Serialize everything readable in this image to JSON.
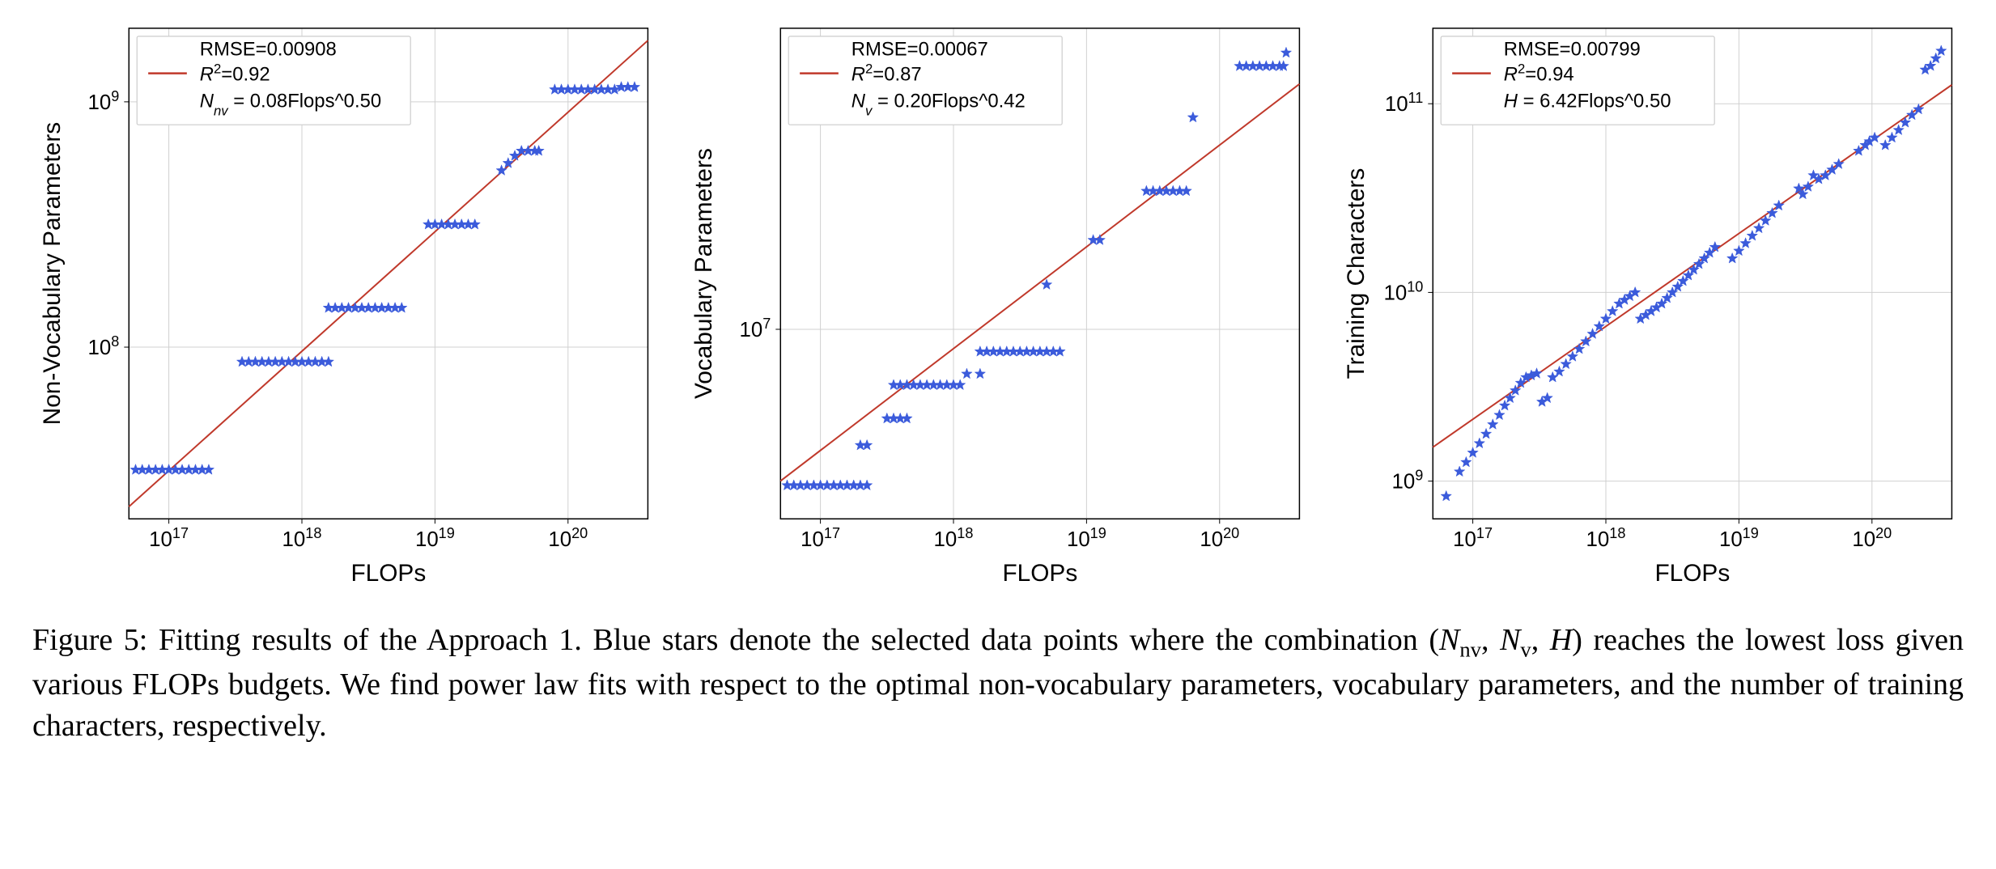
{
  "figure": {
    "number": "Figure 5:",
    "caption_p1": "Fitting results of the Approach 1. Blue stars denote the selected data points where the combination (",
    "caption_Nnv": "N",
    "caption_Nnv_sub": "nv",
    "caption_sep1": ", ",
    "caption_Nv": "N",
    "caption_Nv_sub": "v",
    "caption_sep2": ", ",
    "caption_H": "H",
    "caption_p2": ") reaches the lowest loss given various FLOPs budgets. We find power law fits with respect to the optimal non-vocabulary parameters, vocabulary parameters, and the number of training characters, respectively."
  },
  "common": {
    "xlabel": "FLOPs",
    "xlim": [
      16.7,
      20.6
    ],
    "xticks": [
      17,
      18,
      19,
      20
    ],
    "xtick_labels": [
      "10^17",
      "10^18",
      "10^19",
      "10^20"
    ],
    "grid_color": "#d0d0d0",
    "axis_color": "#000000",
    "fit_color": "#c0392b",
    "marker_color": "#3b5bdb",
    "marker_size": 7,
    "line_width": 2,
    "label_fontsize": 30,
    "tick_fontsize": 26,
    "legend_fontsize": 24,
    "background_color": "#ffffff",
    "legend_border": "#cccccc",
    "legend_bg": "#ffffff"
  },
  "panels": [
    {
      "id": "nv",
      "ylabel": "Non-Vocabulary Parameters",
      "ylim": [
        7.3,
        9.3
      ],
      "yticks": [
        8,
        9
      ],
      "ytick_labels": [
        "10^8",
        "10^9"
      ],
      "legend": {
        "rmse": "RMSE=0.00908",
        "r2_label": "R",
        "r2_sup": "2",
        "r2_val": "=0.92",
        "eq_var": "N",
        "eq_sub": "nv",
        "eq_rest": " = 0.08Flops^0.50"
      },
      "fit_line": {
        "x1": 16.7,
        "y1": 7.35,
        "x2": 20.6,
        "y2": 9.25
      },
      "points": [
        [
          16.75,
          7.5
        ],
        [
          16.8,
          7.5
        ],
        [
          16.85,
          7.5
        ],
        [
          16.9,
          7.5
        ],
        [
          16.95,
          7.5
        ],
        [
          17.0,
          7.5
        ],
        [
          17.05,
          7.5
        ],
        [
          17.1,
          7.5
        ],
        [
          17.15,
          7.5
        ],
        [
          17.2,
          7.5
        ],
        [
          17.25,
          7.5
        ],
        [
          17.3,
          7.5
        ],
        [
          17.55,
          7.94
        ],
        [
          17.6,
          7.94
        ],
        [
          17.65,
          7.94
        ],
        [
          17.7,
          7.94
        ],
        [
          17.75,
          7.94
        ],
        [
          17.8,
          7.94
        ],
        [
          17.85,
          7.94
        ],
        [
          17.9,
          7.94
        ],
        [
          17.95,
          7.94
        ],
        [
          18.0,
          7.94
        ],
        [
          18.05,
          7.94
        ],
        [
          18.1,
          7.94
        ],
        [
          18.15,
          7.94
        ],
        [
          18.2,
          7.94
        ],
        [
          18.2,
          8.16
        ],
        [
          18.25,
          8.16
        ],
        [
          18.3,
          8.16
        ],
        [
          18.35,
          8.16
        ],
        [
          18.4,
          8.16
        ],
        [
          18.45,
          8.16
        ],
        [
          18.5,
          8.16
        ],
        [
          18.55,
          8.16
        ],
        [
          18.6,
          8.16
        ],
        [
          18.65,
          8.16
        ],
        [
          18.7,
          8.16
        ],
        [
          18.75,
          8.16
        ],
        [
          18.95,
          8.5
        ],
        [
          19.0,
          8.5
        ],
        [
          19.05,
          8.5
        ],
        [
          19.1,
          8.5
        ],
        [
          19.15,
          8.5
        ],
        [
          19.2,
          8.5
        ],
        [
          19.25,
          8.5
        ],
        [
          19.3,
          8.5
        ],
        [
          19.5,
          8.72
        ],
        [
          19.55,
          8.75
        ],
        [
          19.6,
          8.78
        ],
        [
          19.65,
          8.8
        ],
        [
          19.7,
          8.8
        ],
        [
          19.75,
          8.8
        ],
        [
          19.78,
          8.8
        ],
        [
          19.9,
          9.05
        ],
        [
          19.95,
          9.05
        ],
        [
          20.0,
          9.05
        ],
        [
          20.05,
          9.05
        ],
        [
          20.1,
          9.05
        ],
        [
          20.15,
          9.05
        ],
        [
          20.2,
          9.05
        ],
        [
          20.25,
          9.05
        ],
        [
          20.3,
          9.05
        ],
        [
          20.35,
          9.05
        ],
        [
          20.4,
          9.06
        ],
        [
          20.45,
          9.06
        ],
        [
          20.5,
          9.06
        ]
      ]
    },
    {
      "id": "v",
      "ylabel": "Vocabulary Parameters",
      "ylim": [
        6.15,
        8.35
      ],
      "yticks": [
        7
      ],
      "ytick_labels": [
        "10^7"
      ],
      "legend": {
        "rmse": "RMSE=0.00067",
        "r2_label": "R",
        "r2_sup": "2",
        "r2_val": "=0.87",
        "eq_var": "N",
        "eq_sub": "v",
        "eq_rest": " = 0.20Flops^0.42"
      },
      "fit_line": {
        "x1": 16.7,
        "y1": 6.32,
        "x2": 20.6,
        "y2": 8.1
      },
      "points": [
        [
          16.75,
          6.3
        ],
        [
          16.8,
          6.3
        ],
        [
          16.85,
          6.3
        ],
        [
          16.9,
          6.3
        ],
        [
          16.95,
          6.3
        ],
        [
          17.0,
          6.3
        ],
        [
          17.05,
          6.3
        ],
        [
          17.1,
          6.3
        ],
        [
          17.15,
          6.3
        ],
        [
          17.2,
          6.3
        ],
        [
          17.25,
          6.3
        ],
        [
          17.3,
          6.3
        ],
        [
          17.35,
          6.3
        ],
        [
          17.3,
          6.48
        ],
        [
          17.35,
          6.48
        ],
        [
          17.5,
          6.6
        ],
        [
          17.55,
          6.6
        ],
        [
          17.6,
          6.6
        ],
        [
          17.65,
          6.6
        ],
        [
          17.55,
          6.75
        ],
        [
          17.6,
          6.75
        ],
        [
          17.65,
          6.75
        ],
        [
          17.7,
          6.75
        ],
        [
          17.75,
          6.75
        ],
        [
          17.8,
          6.75
        ],
        [
          17.85,
          6.75
        ],
        [
          17.9,
          6.75
        ],
        [
          17.95,
          6.75
        ],
        [
          18.0,
          6.75
        ],
        [
          18.05,
          6.75
        ],
        [
          18.1,
          6.8
        ],
        [
          18.2,
          6.8
        ],
        [
          18.2,
          6.9
        ],
        [
          18.25,
          6.9
        ],
        [
          18.3,
          6.9
        ],
        [
          18.35,
          6.9
        ],
        [
          18.4,
          6.9
        ],
        [
          18.45,
          6.9
        ],
        [
          18.5,
          6.9
        ],
        [
          18.55,
          6.9
        ],
        [
          18.6,
          6.9
        ],
        [
          18.65,
          6.9
        ],
        [
          18.7,
          6.9
        ],
        [
          18.75,
          6.9
        ],
        [
          18.8,
          6.9
        ],
        [
          18.7,
          7.2
        ],
        [
          19.05,
          7.4
        ],
        [
          19.1,
          7.4
        ],
        [
          19.45,
          7.62
        ],
        [
          19.5,
          7.62
        ],
        [
          19.55,
          7.62
        ],
        [
          19.6,
          7.62
        ],
        [
          19.65,
          7.62
        ],
        [
          19.7,
          7.62
        ],
        [
          19.75,
          7.62
        ],
        [
          19.8,
          7.95
        ],
        [
          20.15,
          8.18
        ],
        [
          20.2,
          8.18
        ],
        [
          20.25,
          8.18
        ],
        [
          20.3,
          8.18
        ],
        [
          20.35,
          8.18
        ],
        [
          20.4,
          8.18
        ],
        [
          20.45,
          8.18
        ],
        [
          20.48,
          8.18
        ],
        [
          20.5,
          8.24
        ]
      ]
    },
    {
      "id": "h",
      "ylabel": "Training Characters",
      "ylim": [
        8.8,
        11.4
      ],
      "yticks": [
        9,
        10,
        11
      ],
      "ytick_labels": [
        "10^9",
        "10^10",
        "10^11"
      ],
      "legend": {
        "rmse": "RMSE=0.00799",
        "r2_label": "R",
        "r2_sup": "2",
        "r2_val": "=0.94",
        "eq_var": "H",
        "eq_sub": "",
        "eq_rest": " = 6.42Flops^0.50"
      },
      "fit_line": {
        "x1": 16.7,
        "y1": 9.18,
        "x2": 20.6,
        "y2": 11.1
      },
      "points": [
        [
          16.8,
          8.92
        ],
        [
          16.9,
          9.05
        ],
        [
          16.95,
          9.1
        ],
        [
          17.0,
          9.15
        ],
        [
          17.05,
          9.2
        ],
        [
          17.1,
          9.25
        ],
        [
          17.15,
          9.3
        ],
        [
          17.2,
          9.35
        ],
        [
          17.24,
          9.4
        ],
        [
          17.28,
          9.44
        ],
        [
          17.32,
          9.48
        ],
        [
          17.36,
          9.52
        ],
        [
          17.4,
          9.55
        ],
        [
          17.44,
          9.56
        ],
        [
          17.48,
          9.57
        ],
        [
          17.52,
          9.42
        ],
        [
          17.56,
          9.44
        ],
        [
          17.6,
          9.55
        ],
        [
          17.65,
          9.58
        ],
        [
          17.7,
          9.62
        ],
        [
          17.75,
          9.66
        ],
        [
          17.8,
          9.7
        ],
        [
          17.85,
          9.74
        ],
        [
          17.9,
          9.78
        ],
        [
          17.95,
          9.82
        ],
        [
          18.0,
          9.86
        ],
        [
          18.05,
          9.9
        ],
        [
          18.1,
          9.94
        ],
        [
          18.14,
          9.96
        ],
        [
          18.18,
          9.98
        ],
        [
          18.22,
          10.0
        ],
        [
          18.26,
          9.86
        ],
        [
          18.3,
          9.88
        ],
        [
          18.34,
          9.9
        ],
        [
          18.38,
          9.92
        ],
        [
          18.42,
          9.94
        ],
        [
          18.46,
          9.97
        ],
        [
          18.5,
          10.0
        ],
        [
          18.54,
          10.03
        ],
        [
          18.58,
          10.06
        ],
        [
          18.62,
          10.09
        ],
        [
          18.66,
          10.12
        ],
        [
          18.7,
          10.15
        ],
        [
          18.74,
          10.18
        ],
        [
          18.78,
          10.21
        ],
        [
          18.82,
          10.24
        ],
        [
          18.95,
          10.18
        ],
        [
          19.0,
          10.22
        ],
        [
          19.05,
          10.26
        ],
        [
          19.1,
          10.3
        ],
        [
          19.15,
          10.34
        ],
        [
          19.2,
          10.38
        ],
        [
          19.25,
          10.42
        ],
        [
          19.3,
          10.46
        ],
        [
          19.45,
          10.55
        ],
        [
          19.48,
          10.52
        ],
        [
          19.52,
          10.56
        ],
        [
          19.56,
          10.62
        ],
        [
          19.6,
          10.6
        ],
        [
          19.65,
          10.62
        ],
        [
          19.7,
          10.65
        ],
        [
          19.75,
          10.68
        ],
        [
          19.9,
          10.75
        ],
        [
          19.95,
          10.78
        ],
        [
          19.98,
          10.8
        ],
        [
          20.02,
          10.82
        ],
        [
          20.1,
          10.78
        ],
        [
          20.15,
          10.82
        ],
        [
          20.2,
          10.86
        ],
        [
          20.25,
          10.9
        ],
        [
          20.3,
          10.94
        ],
        [
          20.35,
          10.97
        ],
        [
          20.4,
          11.18
        ],
        [
          20.44,
          11.2
        ],
        [
          20.48,
          11.24
        ],
        [
          20.52,
          11.28
        ]
      ]
    }
  ]
}
